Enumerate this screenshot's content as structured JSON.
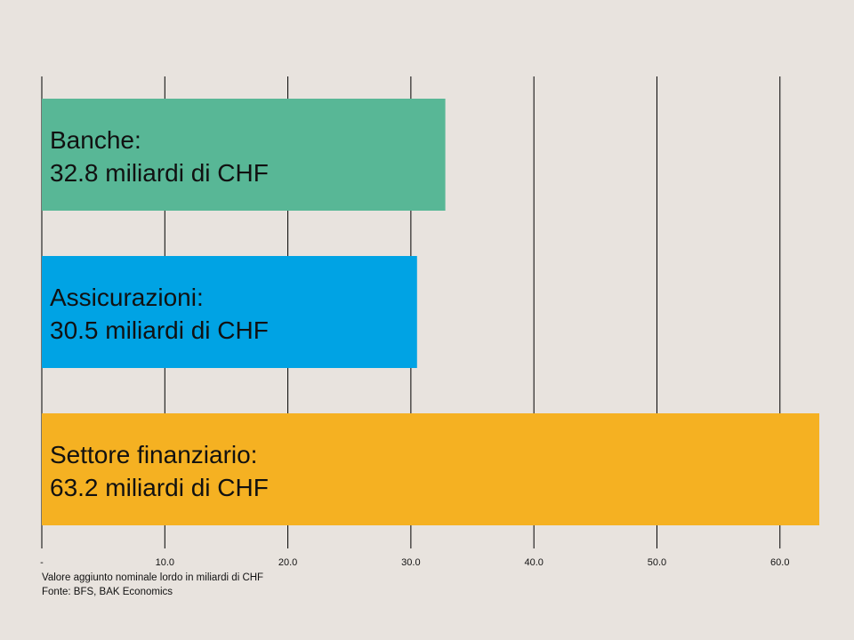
{
  "chart_data": {
    "type": "bar",
    "orientation": "horizontal",
    "categories": [
      "Banche",
      "Assicurazioni",
      "Settore finanziario"
    ],
    "values": [
      32.8,
      30.5,
      63.2
    ],
    "bar_labels": [
      [
        "Banche:",
        "32.8 miliardi di CHF"
      ],
      [
        "Assicurazioni:",
        "30.5 miliardi di CHF"
      ],
      [
        "Settore finanziario:",
        "63.2 miliardi di CHF"
      ]
    ],
    "colors": [
      "#58b796",
      "#00a3e4",
      "#f5b122"
    ],
    "xlim": [
      0,
      63.2
    ],
    "xticks": [
      0,
      10,
      20,
      30,
      40,
      50,
      60
    ],
    "xtick_labels": [
      "-",
      "10.0",
      "20.0",
      "30.0",
      "40.0",
      "50.0",
      "60.0"
    ],
    "grid": true,
    "subtitle": "Valore aggiunto nominale lordo in miliardi di CHF",
    "source": "Fonte: BFS, BAK Economics"
  }
}
